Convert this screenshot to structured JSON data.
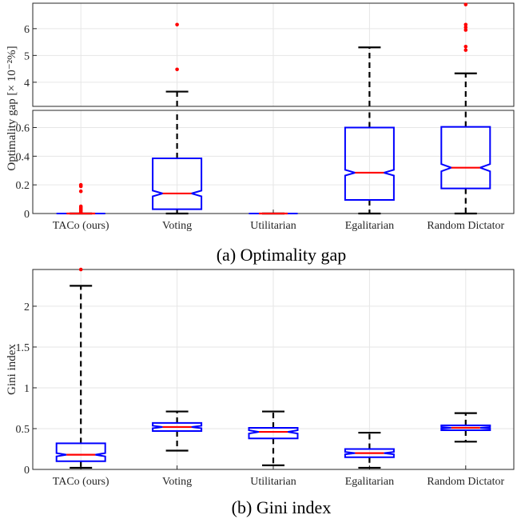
{
  "colors": {
    "box": "#0000ff",
    "median": "#ff0000",
    "whisker": "#000000",
    "outlier": "#ff0000",
    "grid": "#e6e6e6",
    "axis": "#262626"
  },
  "chart_data": [
    {
      "id": "optimality",
      "type": "box",
      "caption": "(a) Optimality gap",
      "ylabel": "Optimality gap [× 10⁻²%]",
      "categories": [
        "TACo (ours)",
        "Voting",
        "Utilitarian",
        "Egalitarian",
        "Random Dictator"
      ],
      "grid": true,
      "broken_axis": true,
      "upper_panel": {
        "ylim": [
          3.1,
          6.95
        ],
        "yticks": [
          4,
          5,
          6
        ],
        "ytick_labels": [
          "4",
          "5",
          "6"
        ]
      },
      "lower_panel": {
        "ylim": [
          0,
          0.72
        ],
        "yticks": [
          0,
          0.2,
          0.4,
          0.6
        ],
        "ytick_labels": [
          "0",
          "0.2",
          "0.4",
          "0.6"
        ]
      },
      "boxes": [
        {
          "min": 0,
          "q1": 0,
          "median": 0,
          "q3": 0,
          "max": 0,
          "notch": [
            0,
            0
          ],
          "outliers": [
            0.2,
            0.19,
            0.155,
            0.05,
            0.04,
            0.03,
            0.02,
            0.01
          ]
        },
        {
          "min": 0,
          "q1": 0.03,
          "median": 0.14,
          "q3": 0.385,
          "max": 3.65,
          "notch": [
            0.12,
            0.16
          ],
          "outliers": [
            4.48,
            6.15
          ]
        },
        {
          "min": 0,
          "q1": 0,
          "median": 0,
          "q3": 0,
          "max": 0,
          "notch": [
            0,
            0
          ],
          "outliers": []
        },
        {
          "min": 0,
          "q1": 0.095,
          "median": 0.285,
          "q3": 0.6,
          "max": 5.3,
          "notch": [
            0.265,
            0.305
          ],
          "outliers": []
        },
        {
          "min": 0,
          "q1": 0.175,
          "median": 0.32,
          "q3": 0.605,
          "max": 4.33,
          "notch": [
            0.295,
            0.345
          ],
          "outliers": [
            5.2,
            5.33,
            5.95,
            6.05,
            6.15,
            6.9
          ]
        }
      ]
    },
    {
      "id": "gini",
      "type": "box",
      "caption": "(b) Gini index",
      "ylabel": "Gini index",
      "categories": [
        "TACo (ours)",
        "Voting",
        "Utilitarian",
        "Egalitarian",
        "Random Dictator"
      ],
      "grid": true,
      "ylim": [
        0,
        2.45
      ],
      "yticks": [
        0,
        0.5,
        1,
        1.5,
        2
      ],
      "ytick_labels": [
        "0",
        "0.5",
        "1",
        "1.5",
        "2"
      ],
      "boxes": [
        {
          "min": 0.02,
          "q1": 0.1,
          "median": 0.18,
          "q3": 0.32,
          "max": 2.25,
          "notch": [
            0.16,
            0.2
          ],
          "outliers": [
            2.45
          ]
        },
        {
          "min": 0.23,
          "q1": 0.47,
          "median": 0.52,
          "q3": 0.57,
          "max": 0.71,
          "notch": [
            0.505,
            0.535
          ],
          "outliers": []
        },
        {
          "min": 0.05,
          "q1": 0.38,
          "median": 0.46,
          "q3": 0.51,
          "max": 0.71,
          "notch": [
            0.44,
            0.48
          ],
          "outliers": []
        },
        {
          "min": 0.02,
          "q1": 0.15,
          "median": 0.2,
          "q3": 0.25,
          "max": 0.45,
          "notch": [
            0.185,
            0.215
          ],
          "outliers": []
        },
        {
          "min": 0.34,
          "q1": 0.48,
          "median": 0.51,
          "q3": 0.54,
          "max": 0.69,
          "notch": [
            0.5,
            0.52
          ],
          "outliers": []
        }
      ]
    }
  ]
}
